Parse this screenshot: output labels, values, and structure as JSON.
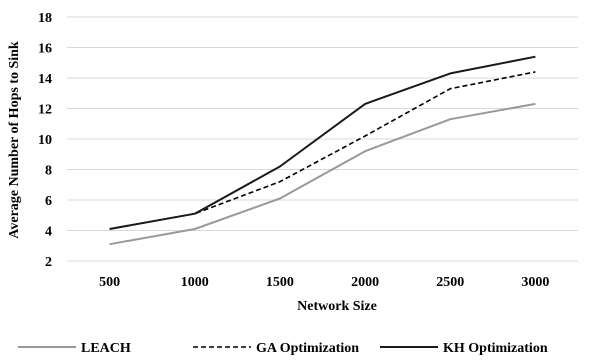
{
  "chart_data": {
    "type": "line",
    "title": "",
    "xlabel": "Network Size",
    "ylabel": "Average Number of Hops to Sink",
    "categories": [
      "500",
      "1000",
      "1500",
      "2000",
      "2500",
      "3000"
    ],
    "ylim": [
      2,
      18
    ],
    "yticks": [
      2,
      4,
      6,
      8,
      10,
      12,
      14,
      16,
      18
    ],
    "grid": "horizontal",
    "legend_position": "bottom",
    "series": [
      {
        "name": "LEACH",
        "values": [
          3.1,
          4.1,
          6.1,
          9.2,
          11.3,
          12.3
        ],
        "color": "#999999",
        "dash": "solid"
      },
      {
        "name": "GA Optimization",
        "values": [
          4.1,
          5.1,
          7.2,
          10.2,
          13.3,
          14.4
        ],
        "color": "#000000",
        "dash": "dashed"
      },
      {
        "name": "KH Optimization",
        "values": [
          4.1,
          5.1,
          8.2,
          12.3,
          14.3,
          15.4
        ],
        "color": "#1a1a1a",
        "dash": "solid"
      }
    ]
  }
}
